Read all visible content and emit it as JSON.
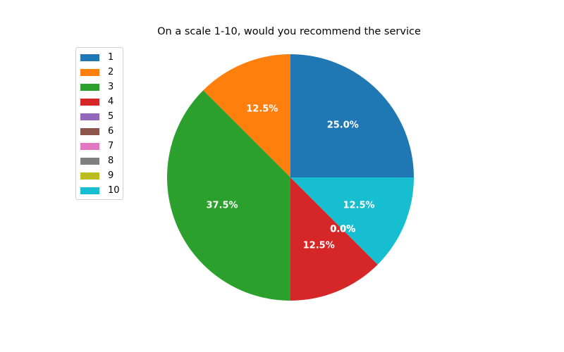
{
  "chart_data": {
    "type": "pie",
    "title": "On a scale 1-10, would you recommend the service",
    "categories": [
      "1",
      "2",
      "3",
      "4",
      "5",
      "6",
      "7",
      "8",
      "9",
      "10"
    ],
    "values": [
      25.0,
      12.5,
      37.5,
      12.5,
      0.0,
      0.0,
      0.0,
      0.0,
      0.0,
      12.5
    ],
    "value_labels": [
      "25.0%",
      "12.5%",
      "37.5%",
      "12.5%",
      "0.0%",
      "0.0%",
      "0.0%",
      "0.0%",
      "0.0%",
      "12.5%"
    ],
    "colors": [
      "#1f77b4",
      "#ff7f0e",
      "#2ca02c",
      "#d62728",
      "#9467bd",
      "#8c564b",
      "#e377c2",
      "#7f7f7f",
      "#bcbd22",
      "#17becf"
    ],
    "legend_position": "upper-left",
    "start_angle_degrees": 0,
    "direction": "counterclockwise"
  }
}
